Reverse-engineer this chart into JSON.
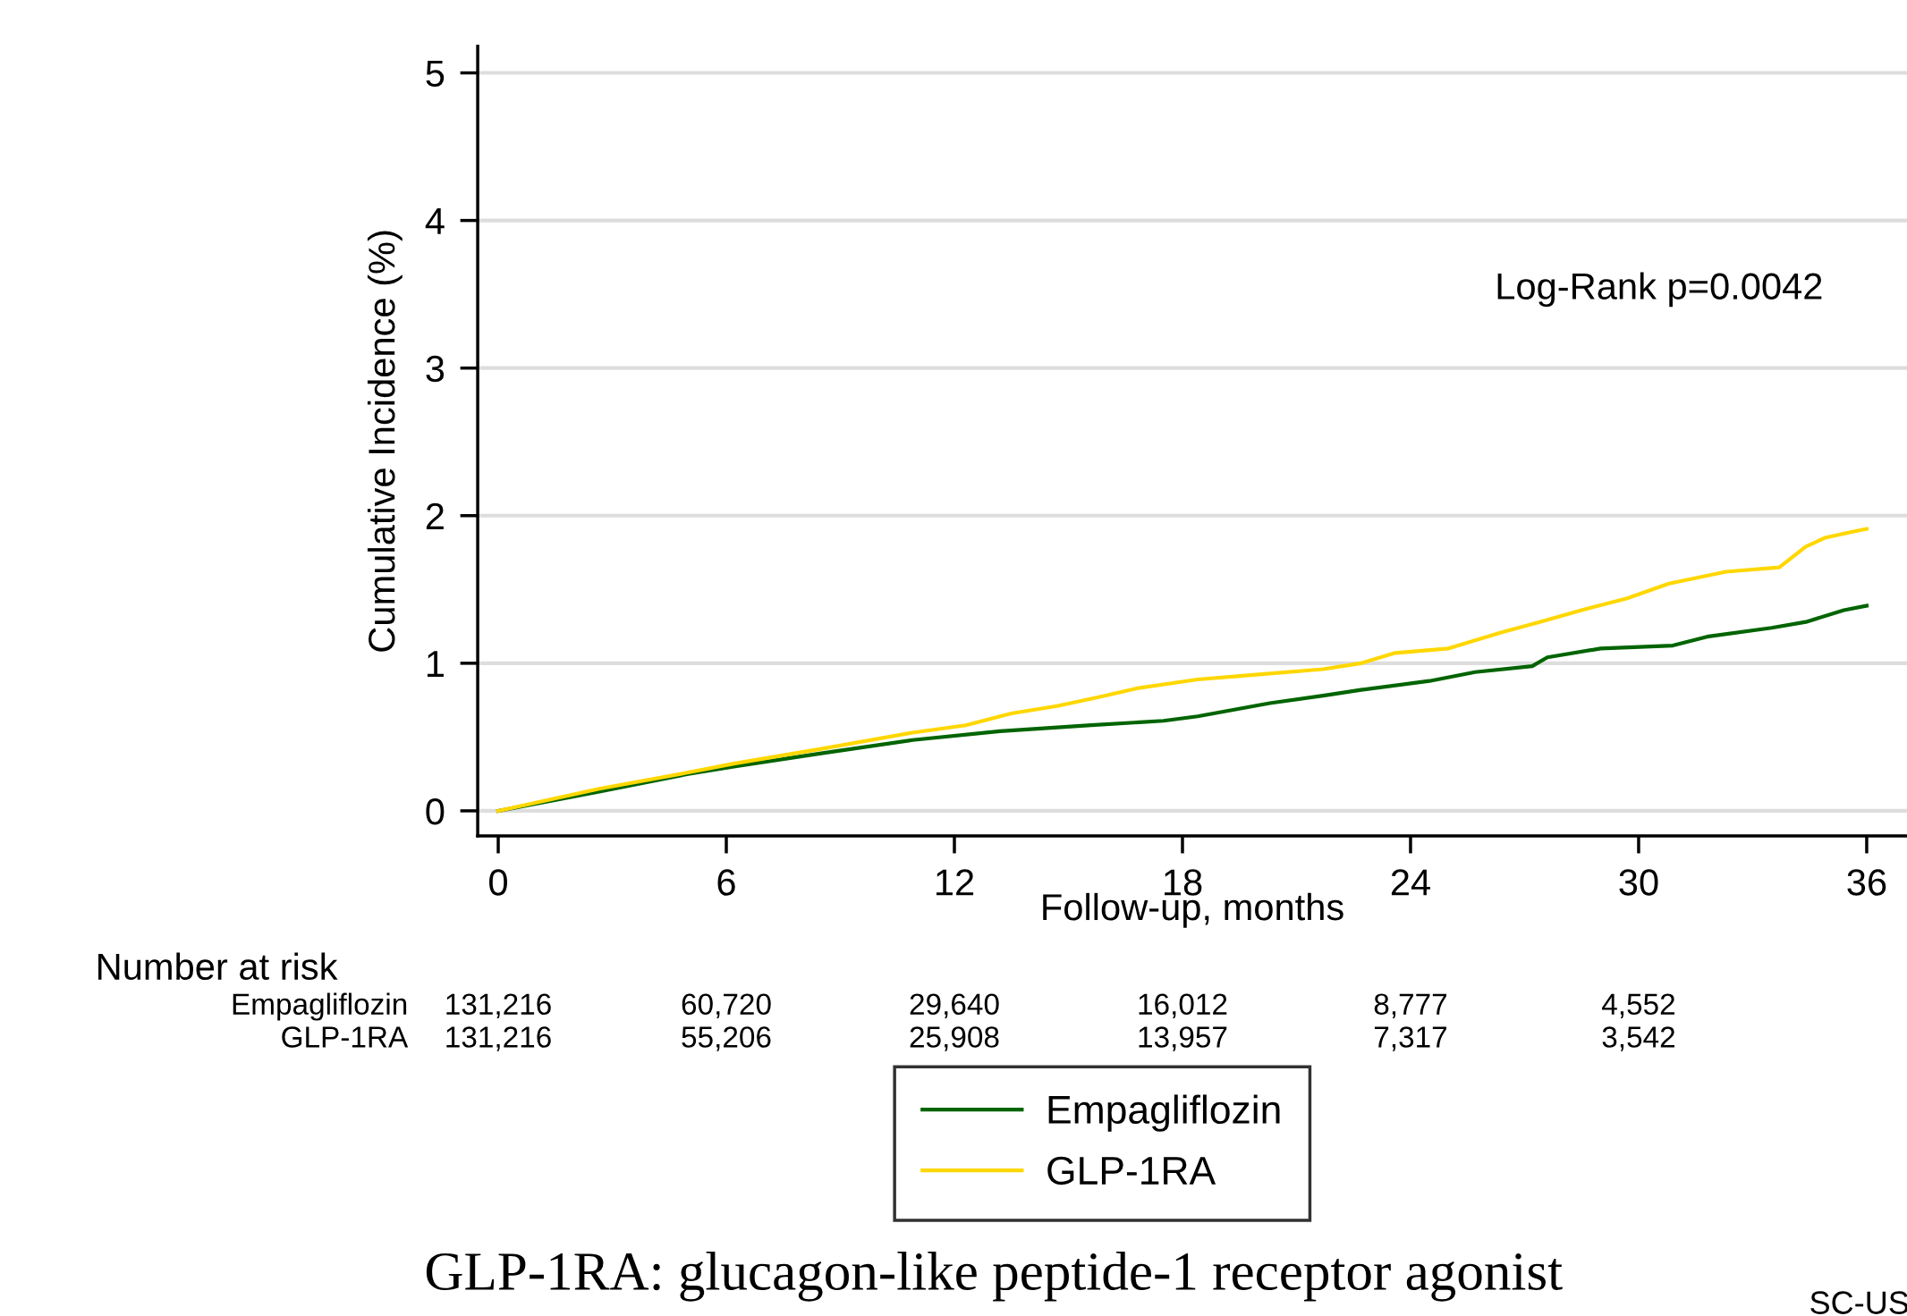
{
  "chart_data": {
    "type": "line",
    "xlabel": "Follow-up, months",
    "ylabel": "Cumulative Incidence (%)",
    "xlim": [
      -0.54,
      37.06
    ],
    "ylim": [
      -0.17,
      5.18
    ],
    "xticks": [
      0,
      6,
      12,
      18,
      24,
      30,
      36
    ],
    "yticks": [
      0,
      1,
      2,
      3,
      4,
      5
    ],
    "grid": "y",
    "legend": "bottom",
    "line_style": "solid",
    "marker": "none",
    "series": [
      {
        "name": "Empagliflozin",
        "color": "#006400",
        "x": [
          0,
          2.66,
          5.0,
          6.2,
          8.5,
          10.9,
          13.2,
          15.6,
          17.5,
          18.4,
          20.3,
          21.7,
          22.7,
          24.5,
          25.7,
          27.2,
          27.6,
          29.0,
          30.9,
          31.8,
          33.5,
          34.4,
          35.4,
          36.0
        ],
        "values": [
          0,
          0.13,
          0.25,
          0.3,
          0.39,
          0.48,
          0.54,
          0.58,
          0.61,
          0.64,
          0.73,
          0.78,
          0.82,
          0.88,
          0.94,
          0.98,
          1.04,
          1.1,
          1.12,
          1.18,
          1.24,
          1.28,
          1.36,
          1.39
        ]
      },
      {
        "name": "GLP-1RA",
        "color": "#ffd700",
        "x": [
          0,
          2.66,
          5.0,
          6.2,
          8.5,
          10.9,
          12.3,
          13.5,
          14.7,
          15.8,
          16.8,
          18.4,
          19.8,
          21.7,
          22.7,
          23.6,
          25.0,
          26.4,
          27.4,
          28.5,
          29.7,
          30.8,
          32.3,
          33.7,
          34.4,
          34.9,
          35.8,
          36.0
        ],
        "values": [
          0,
          0.15,
          0.26,
          0.32,
          0.42,
          0.53,
          0.58,
          0.66,
          0.71,
          0.77,
          0.83,
          0.89,
          0.92,
          0.96,
          1.0,
          1.07,
          1.1,
          1.21,
          1.28,
          1.36,
          1.44,
          1.54,
          1.62,
          1.65,
          1.79,
          1.85,
          1.9,
          1.91
        ]
      }
    ],
    "annotations": [
      "Log-Rank p=0.0042",
      "Number at risk",
      "Empagliflozin",
      "GLP-1RA",
      "GLP-1RA: glucagon-like peptide-1 receptor agonist",
      "SC-US",
      "131,216",
      "60,720",
      "29,640",
      "16,012",
      "8,777",
      "4,552",
      "131,216",
      "55,206",
      "25,908",
      "13,957",
      "7,317",
      "3,542"
    ]
  }
}
